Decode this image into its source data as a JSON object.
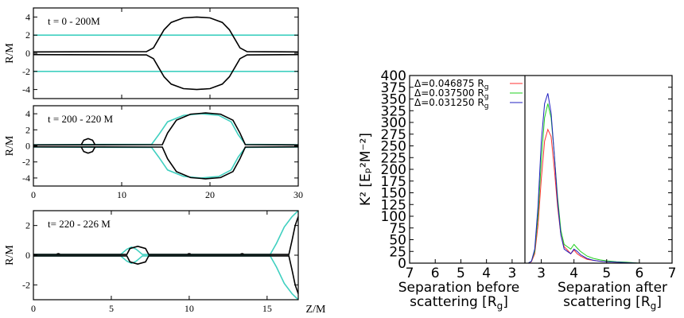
{
  "chart_data": [
    {
      "type": "line",
      "panel": "top-left",
      "annotation": "t = 0 - 200M",
      "ylabel": "R/M",
      "xlabel": "",
      "xlim": [
        0,
        30
      ],
      "ylim": [
        -5,
        5
      ],
      "yticks": [
        "4",
        "2",
        "0",
        "-2",
        "-4"
      ],
      "xticks": [],
      "grid": false,
      "series": [
        {
          "color": "#40d0c0",
          "points": [
            [
              0,
              2.0
            ],
            [
              30,
              2.0
            ]
          ]
        },
        {
          "color": "#40d0c0",
          "points": [
            [
              0,
              -2.0
            ],
            [
              30,
              -2.0
            ]
          ]
        },
        {
          "color": "#000000",
          "points": [
            [
              0,
              0.15
            ],
            [
              12.8,
              0.18
            ],
            [
              13.6,
              0.6
            ],
            [
              14.2,
              1.6
            ],
            [
              14.8,
              2.6
            ],
            [
              15.6,
              3.4
            ],
            [
              17,
              3.9
            ],
            [
              18.5,
              4.0
            ],
            [
              20,
              3.9
            ],
            [
              21.4,
              3.4
            ],
            [
              22.2,
              2.6
            ],
            [
              22.8,
              1.6
            ],
            [
              23.4,
              0.6
            ],
            [
              24.2,
              0.18
            ],
            [
              30,
              0.15
            ]
          ]
        },
        {
          "color": "#000000",
          "points": [
            [
              0,
              -0.15
            ],
            [
              12.8,
              -0.18
            ],
            [
              13.6,
              -0.6
            ],
            [
              14.2,
              -1.6
            ],
            [
              14.8,
              -2.6
            ],
            [
              15.6,
              -3.4
            ],
            [
              17,
              -3.9
            ],
            [
              18.5,
              -4.0
            ],
            [
              20,
              -3.9
            ],
            [
              21.4,
              -3.4
            ],
            [
              22.2,
              -2.6
            ],
            [
              22.8,
              -1.6
            ],
            [
              23.4,
              -0.6
            ],
            [
              24.2,
              -0.18
            ],
            [
              30,
              -0.15
            ]
          ]
        }
      ]
    },
    {
      "type": "line",
      "panel": "middle-left",
      "annotation": "t = 200 - 220 M",
      "ylabel": "R/M",
      "xlabel": "",
      "xlim": [
        0,
        30
      ],
      "ylim": [
        -5,
        5
      ],
      "yticks": [
        "4",
        "2",
        "0",
        "-2",
        "-4"
      ],
      "xticks": [
        "0",
        "10",
        "20",
        "30"
      ],
      "grid": false,
      "series": [
        {
          "color": "#40d0c0",
          "points": [
            [
              0,
              0.15
            ],
            [
              13.4,
              0.2
            ],
            [
              14.2,
              1.4
            ],
            [
              15.2,
              3.0
            ],
            [
              17,
              3.8
            ],
            [
              19,
              4.0
            ],
            [
              21,
              3.8
            ],
            [
              22.4,
              3.0
            ],
            [
              23.2,
              1.4
            ],
            [
              24,
              0.2
            ],
            [
              30,
              0.15
            ]
          ]
        },
        {
          "color": "#40d0c0",
          "points": [
            [
              0,
              -0.15
            ],
            [
              13.4,
              -0.2
            ],
            [
              14.2,
              -1.4
            ],
            [
              15.2,
              -3.0
            ],
            [
              17,
              -3.8
            ],
            [
              19,
              -4.0
            ],
            [
              21,
              -3.8
            ],
            [
              22.4,
              -3.0
            ],
            [
              23.2,
              -1.4
            ],
            [
              24,
              -0.2
            ],
            [
              30,
              -0.15
            ]
          ]
        },
        {
          "color": "#000000",
          "points": [
            [
              0,
              0.12
            ],
            [
              14.6,
              0.15
            ],
            [
              15.2,
              1.6
            ],
            [
              16.2,
              3.2
            ],
            [
              17.8,
              3.95
            ],
            [
              19.5,
              4.1
            ],
            [
              21.2,
              3.95
            ],
            [
              22.6,
              3.2
            ],
            [
              23.4,
              1.6
            ],
            [
              24,
              0.15
            ],
            [
              30,
              0.12
            ]
          ]
        },
        {
          "color": "#000000",
          "points": [
            [
              0,
              -0.12
            ],
            [
              14.6,
              -0.15
            ],
            [
              15.2,
              -1.6
            ],
            [
              16.2,
              -3.2
            ],
            [
              17.8,
              -3.95
            ],
            [
              19.5,
              -4.1
            ],
            [
              21.2,
              -3.95
            ],
            [
              22.6,
              -3.2
            ],
            [
              23.4,
              -1.6
            ],
            [
              24,
              -0.15
            ],
            [
              30,
              -0.12
            ]
          ]
        },
        {
          "color": "#000000",
          "points": [
            [
              5.4,
              0.1
            ],
            [
              5.7,
              0.7
            ],
            [
              6.2,
              0.9
            ],
            [
              6.7,
              0.7
            ],
            [
              7.0,
              0.1
            ]
          ]
        },
        {
          "color": "#000000",
          "points": [
            [
              5.4,
              -0.1
            ],
            [
              5.7,
              -0.7
            ],
            [
              6.2,
              -0.9
            ],
            [
              6.7,
              -0.7
            ],
            [
              7.0,
              -0.1
            ]
          ]
        }
      ]
    },
    {
      "type": "line",
      "panel": "bottom-left",
      "annotation": "t= 220 - 226 M",
      "ylabel": "R/M",
      "xlabel": "Z/M",
      "xlim": [
        0,
        17
      ],
      "ylim": [
        -3,
        3
      ],
      "yticks": [
        "2",
        "0",
        "-2"
      ],
      "xticks": [
        "0",
        "5",
        "10",
        "15"
      ],
      "grid": false,
      "series": [
        {
          "color": "#40d0c0",
          "points": [
            [
              0,
              0.05
            ],
            [
              5.6,
              0.05
            ],
            [
              6.0,
              0.4
            ],
            [
              6.3,
              0.55
            ],
            [
              6.6,
              0.4
            ],
            [
              7.0,
              0.05
            ],
            [
              15.2,
              0.05
            ],
            [
              15.6,
              0.8
            ],
            [
              16.1,
              1.9
            ],
            [
              16.6,
              2.6
            ],
            [
              17,
              3.0
            ]
          ]
        },
        {
          "color": "#40d0c0",
          "points": [
            [
              0,
              -0.05
            ],
            [
              5.6,
              -0.05
            ],
            [
              6.0,
              -0.4
            ],
            [
              6.3,
              -0.55
            ],
            [
              6.6,
              -0.4
            ],
            [
              7.0,
              -0.05
            ],
            [
              15.2,
              -0.05
            ],
            [
              15.6,
              -0.8
            ],
            [
              16.1,
              -1.9
            ],
            [
              16.6,
              -2.6
            ],
            [
              17,
              -3.0
            ]
          ]
        },
        {
          "color": "#000000",
          "points": [
            [
              0,
              0.05
            ],
            [
              6.0,
              0.05
            ],
            [
              6.2,
              0.45
            ],
            [
              6.7,
              0.6
            ],
            [
              7.2,
              0.45
            ],
            [
              7.4,
              0.05
            ],
            [
              16.4,
              0.05
            ],
            [
              16.6,
              1.0
            ],
            [
              16.8,
              2.0
            ],
            [
              17,
              2.6
            ]
          ]
        },
        {
          "color": "#000000",
          "points": [
            [
              0,
              -0.05
            ],
            [
              6.0,
              -0.05
            ],
            [
              6.2,
              -0.45
            ],
            [
              6.7,
              -0.6
            ],
            [
              7.2,
              -0.45
            ],
            [
              7.4,
              -0.05
            ],
            [
              16.4,
              -0.05
            ],
            [
              16.6,
              -1.0
            ],
            [
              16.8,
              -2.0
            ],
            [
              17,
              -2.6
            ]
          ]
        },
        {
          "color": "#000000",
          "points": [
            [
              1.5,
              0.08
            ],
            [
              1.6,
              0.1
            ],
            [
              1.7,
              0.08
            ]
          ]
        },
        {
          "color": "#000000",
          "points": [
            [
              9.9,
              0.08
            ],
            [
              10.0,
              0.1
            ],
            [
              10.1,
              0.08
            ]
          ]
        },
        {
          "color": "#000000",
          "points": [
            [
              13.3,
              0.08
            ],
            [
              13.4,
              0.1
            ],
            [
              13.5,
              0.08
            ]
          ]
        }
      ]
    },
    {
      "type": "line",
      "panel": "right",
      "ylabel": "K² [Eₚ²M⁻²]",
      "xlabel_left": [
        "Separation before",
        "scattering [R",
        "g",
        "]"
      ],
      "xlabel_right": [
        "Separation after",
        "scattering [R",
        "g",
        "]"
      ],
      "ylim": [
        0,
        400
      ],
      "yticks": [
        "0",
        "25",
        "50",
        "75",
        "100",
        "125",
        "150",
        "175",
        "200",
        "225",
        "250",
        "275",
        "300",
        "325",
        "350",
        "375",
        "400"
      ],
      "xticks_left": [
        "7",
        "6",
        "5",
        "4",
        "3"
      ],
      "xticks_right": [
        "3",
        "4",
        "5",
        "6",
        "7"
      ],
      "legend_position": "top-left",
      "grid": false,
      "series": [
        {
          "name": "Δ=0.046875 R",
          "sub": "g",
          "color": "#ff3030",
          "x": [
            2.5,
            2.6,
            2.7,
            2.8,
            2.9,
            3.0,
            3.1,
            3.2,
            3.3,
            3.4,
            3.5,
            3.6,
            3.7,
            3.8,
            3.9,
            4.0,
            4.1,
            4.2,
            4.4,
            4.6,
            4.8,
            5.0,
            5.3,
            5.6,
            6.0
          ],
          "y": [
            0,
            0,
            3,
            20,
            80,
            180,
            260,
            285,
            270,
            200,
            120,
            60,
            35,
            28,
            20,
            28,
            20,
            15,
            8,
            6,
            4,
            3,
            2,
            1,
            0
          ]
        },
        {
          "name": "Δ=0.037500 R",
          "sub": "g",
          "color": "#20d020",
          "x": [
            2.5,
            2.6,
            2.7,
            2.8,
            2.9,
            3.0,
            3.1,
            3.2,
            3.3,
            3.4,
            3.5,
            3.6,
            3.7,
            3.8,
            3.9,
            4.0,
            4.1,
            4.2,
            4.4,
            4.6,
            4.8,
            5.0,
            5.3,
            5.6,
            6.0
          ],
          "y": [
            0,
            0,
            4,
            25,
            100,
            220,
            310,
            340,
            310,
            230,
            140,
            70,
            40,
            35,
            30,
            40,
            32,
            25,
            15,
            10,
            7,
            5,
            3,
            2,
            0
          ]
        },
        {
          "name": "Δ=0.031250 R",
          "sub": "g",
          "color": "#2020c0",
          "x": [
            2.5,
            2.6,
            2.7,
            2.8,
            2.9,
            3.0,
            3.1,
            3.2,
            3.3,
            3.4,
            3.5,
            3.6,
            3.7,
            3.8,
            3.9,
            4.0,
            4.1,
            4.2,
            4.4,
            4.6,
            4.8,
            5.0,
            5.3,
            5.6,
            6.0
          ],
          "y": [
            0,
            0,
            4,
            30,
            120,
            260,
            340,
            362,
            320,
            230,
            130,
            60,
            30,
            25,
            20,
            30,
            25,
            18,
            10,
            6,
            4,
            3,
            2,
            1,
            0
          ]
        }
      ]
    }
  ]
}
